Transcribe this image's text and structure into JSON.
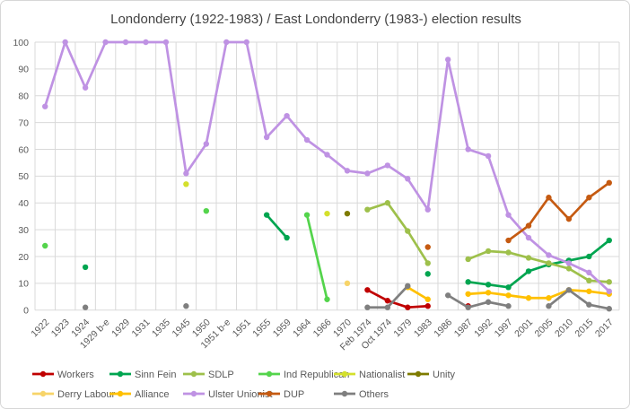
{
  "title": "Londonderry (1922-1983) / East Londonderry (1983-) election results",
  "axis": {
    "y_min": 0,
    "y_max": 100,
    "y_step": 10,
    "tick_color": "#595959",
    "grid_color": "#d9d9d9"
  },
  "chart_data": {
    "type": "line",
    "title": "Londonderry (1922-1983) / East Londonderry (1983-) election results",
    "xlabel": "",
    "ylabel": "",
    "ylim": [
      0,
      100
    ],
    "ytick_step": 10,
    "grid": true,
    "legend_position": "bottom",
    "categories": [
      "1922",
      "1923",
      "1924",
      "1929 b-e",
      "1929",
      "1931",
      "1935",
      "1945",
      "1950",
      "1951 b-e",
      "1951",
      "1955",
      "1959",
      "1964",
      "1966",
      "1970",
      "Feb 1974",
      "Oct 1974",
      "1979",
      "1983",
      "1986",
      "1987",
      "1992",
      "1997",
      "2001",
      "2005",
      "2010",
      "2015",
      "2017"
    ],
    "series": [
      {
        "name": "Workers",
        "color": "#c00000",
        "values": [
          null,
          null,
          null,
          null,
          null,
          null,
          null,
          null,
          null,
          null,
          null,
          null,
          null,
          null,
          null,
          null,
          7.5,
          3.5,
          1,
          1.5,
          null,
          1.5,
          null,
          null,
          null,
          null,
          null,
          null,
          null
        ]
      },
      {
        "name": "Sinn Fein",
        "color": "#00a550",
        "values": [
          null,
          null,
          16,
          null,
          null,
          null,
          null,
          null,
          null,
          null,
          null,
          35.5,
          27,
          null,
          null,
          null,
          null,
          null,
          null,
          13.5,
          null,
          10.5,
          9.5,
          8.5,
          14.5,
          17,
          18.5,
          20,
          26
        ]
      },
      {
        "name": "SDLP",
        "color": "#9ec04b",
        "values": [
          null,
          null,
          null,
          null,
          null,
          null,
          null,
          null,
          null,
          null,
          null,
          null,
          null,
          null,
          null,
          null,
          37.5,
          40,
          29.5,
          17.5,
          null,
          19,
          22,
          21.5,
          19.5,
          17.5,
          15.5,
          11,
          10.5
        ]
      },
      {
        "name": "Ind Republican",
        "color": "#54d44c",
        "values": [
          24,
          null,
          null,
          null,
          null,
          null,
          null,
          null,
          37,
          null,
          null,
          null,
          null,
          35.5,
          4,
          null,
          null,
          null,
          null,
          null,
          null,
          null,
          null,
          null,
          null,
          null,
          null,
          null,
          null
        ]
      },
      {
        "name": "Nationalist",
        "color": "#d4e02c",
        "values": [
          null,
          null,
          null,
          null,
          null,
          null,
          null,
          47,
          null,
          null,
          null,
          null,
          null,
          null,
          36,
          null,
          null,
          null,
          null,
          null,
          null,
          null,
          null,
          null,
          null,
          null,
          null,
          null,
          null
        ]
      },
      {
        "name": "Unity",
        "color": "#7e7b00",
        "values": [
          null,
          null,
          null,
          null,
          null,
          null,
          null,
          null,
          null,
          null,
          null,
          null,
          null,
          null,
          null,
          36,
          null,
          null,
          null,
          null,
          null,
          null,
          null,
          null,
          null,
          null,
          null,
          null,
          null
        ]
      },
      {
        "name": "Derry Labour",
        "color": "#f7d469",
        "values": [
          null,
          null,
          null,
          null,
          null,
          null,
          null,
          null,
          null,
          null,
          null,
          null,
          null,
          null,
          null,
          10,
          null,
          null,
          null,
          null,
          null,
          null,
          null,
          null,
          null,
          null,
          null,
          null,
          null
        ]
      },
      {
        "name": "Alliance",
        "color": "#ffc000",
        "values": [
          null,
          null,
          null,
          null,
          null,
          null,
          null,
          null,
          null,
          null,
          null,
          null,
          null,
          null,
          null,
          null,
          null,
          null,
          8.5,
          4,
          null,
          6,
          6.5,
          5.5,
          4.5,
          4.5,
          7.5,
          7,
          6
        ]
      },
      {
        "name": "Ulster Unionist",
        "color": "#bf92e3",
        "values": [
          76,
          100,
          83,
          100,
          100,
          100,
          100,
          51,
          62,
          100,
          100,
          64.5,
          72.5,
          63.5,
          58,
          52,
          51,
          54,
          49,
          37.5,
          93.5,
          60,
          57.5,
          35.5,
          27,
          20.5,
          17.5,
          14,
          7
        ]
      },
      {
        "name": "DUP",
        "color": "#c55a11",
        "values": [
          null,
          null,
          null,
          null,
          null,
          null,
          null,
          null,
          null,
          null,
          null,
          null,
          null,
          null,
          null,
          null,
          null,
          null,
          null,
          23.5,
          null,
          null,
          null,
          26,
          31.5,
          42,
          34,
          42,
          47.5
        ]
      },
      {
        "name": "Others",
        "color": "#7f7f7f",
        "values": [
          null,
          null,
          1,
          null,
          null,
          null,
          null,
          1.5,
          null,
          null,
          null,
          null,
          null,
          null,
          null,
          null,
          1,
          1,
          9,
          null,
          5.5,
          1,
          3,
          1.5,
          null,
          1.5,
          7.5,
          2,
          0.5
        ]
      }
    ],
    "legend_rows": [
      [
        "Workers",
        "Sinn Fein",
        "SDLP",
        "Ind Republican",
        "Nationalist",
        "Unity"
      ],
      [
        "Derry Labour",
        "Alliance",
        "Ulster Unionist",
        "DUP",
        "Others"
      ]
    ]
  }
}
